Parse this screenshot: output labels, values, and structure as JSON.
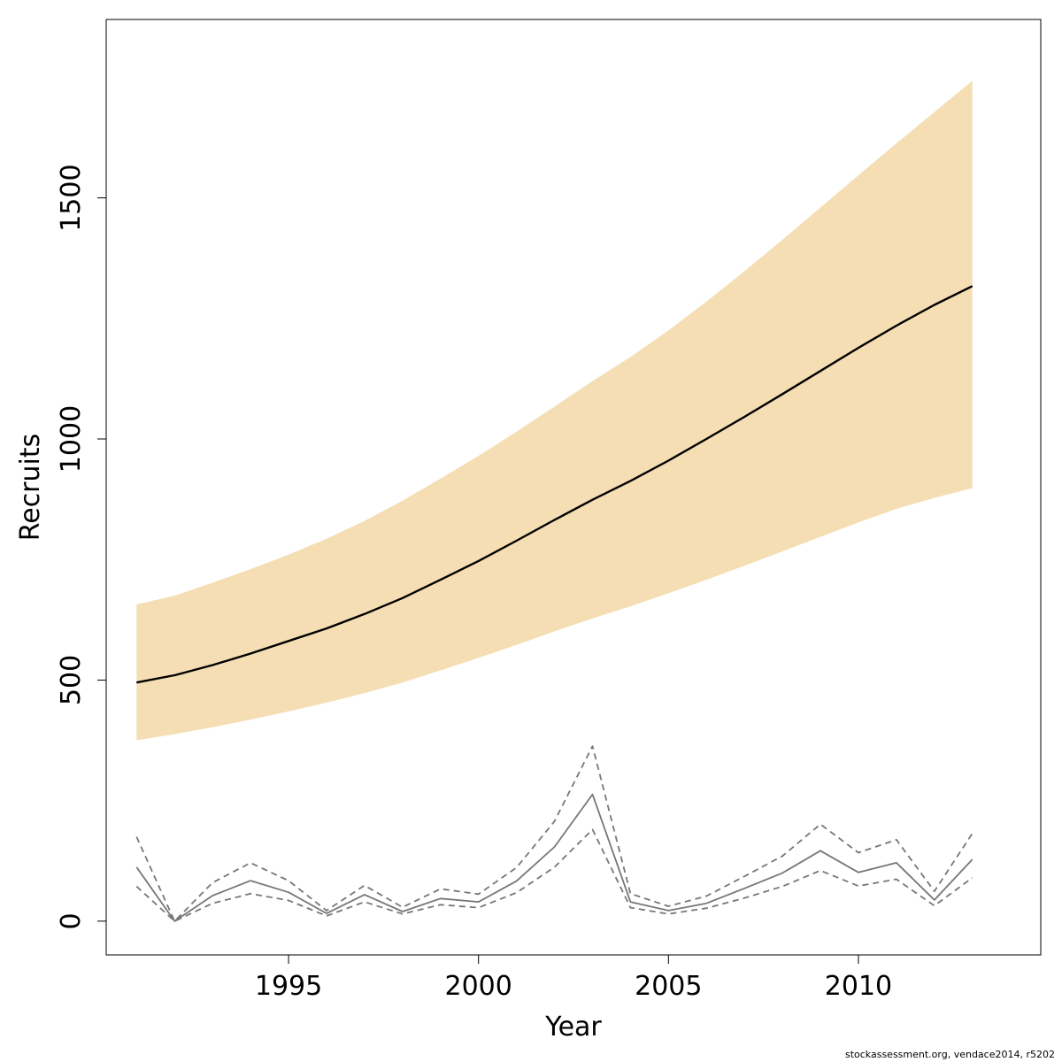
{
  "chart_data": {
    "type": "line",
    "xlabel": "Year",
    "ylabel": "Recruits",
    "xlim": [
      1990.2,
      2014.8
    ],
    "ylim": [
      -70,
      1870
    ],
    "x_ticks": [
      1995,
      2000,
      2005,
      2010
    ],
    "y_ticks": [
      0,
      500,
      1000,
      1500
    ],
    "grid": false,
    "colors": {
      "band": "#F5DEB3",
      "model": "#000000",
      "observed": "#777777"
    },
    "x": [
      1991,
      1992,
      1993,
      1994,
      1995,
      1996,
      1997,
      1998,
      1999,
      2000,
      2001,
      2002,
      2003,
      2004,
      2005,
      2006,
      2007,
      2008,
      2009,
      2010,
      2011,
      2012,
      2013
    ],
    "series": [
      {
        "role": "band",
        "upper": [
          657,
          675,
          702,
          730,
          760,
          793,
          830,
          872,
          918,
          965,
          1015,
          1067,
          1120,
          1170,
          1225,
          1285,
          1348,
          1413,
          1480,
          1547,
          1613,
          1678,
          1743
        ],
        "lower": [
          375,
          388,
          402,
          418,
          435,
          453,
          473,
          495,
          520,
          546,
          573,
          601,
          628,
          653,
          680,
          708,
          737,
          767,
          797,
          827,
          855,
          878,
          898
        ]
      },
      {
        "role": "model",
        "values": [
          495,
          510,
          531,
          555,
          581,
          607,
          637,
          670,
          708,
          747,
          789,
          832,
          874,
          913,
          955,
          1000,
          1046,
          1093,
          1141,
          1189,
          1235,
          1278,
          1317
        ]
      },
      {
        "role": "observed",
        "values": [
          112,
          0,
          53,
          84,
          60,
          16,
          55,
          20,
          47,
          40,
          83,
          154,
          263,
          40,
          22,
          37,
          68,
          100,
          146,
          101,
          121,
          44,
          128
        ]
      },
      {
        "role": "observed-upper",
        "values": [
          175,
          0,
          80,
          121,
          84,
          22,
          74,
          29,
          67,
          56,
          111,
          207,
          363,
          57,
          31,
          52,
          93,
          135,
          201,
          142,
          169,
          62,
          182
        ]
      },
      {
        "role": "observed-lower",
        "values": [
          72,
          0,
          37,
          57,
          43,
          11,
          40,
          15,
          34,
          28,
          59,
          112,
          190,
          28,
          15,
          27,
          48,
          72,
          105,
          73,
          87,
          32,
          90
        ]
      }
    ]
  },
  "footer": "stockassessment.org, vendace2014, r5202"
}
